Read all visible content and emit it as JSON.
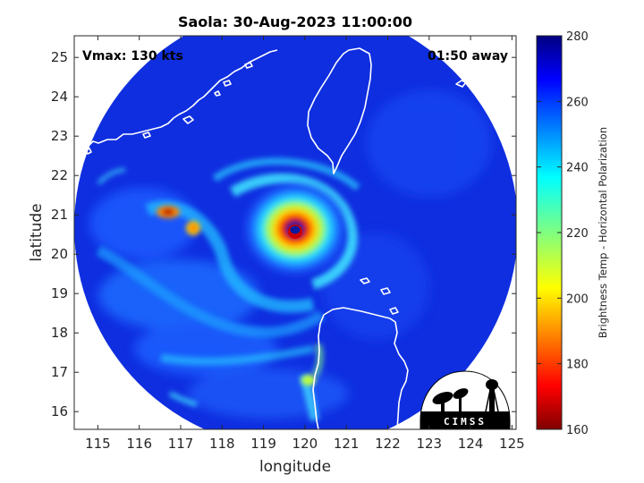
{
  "title": "Saola: 30-Aug-2023 11:00:00",
  "vmax_text": "Vmax: 130 kts",
  "time_away_text": "01:50 away",
  "xlabel": "longitude",
  "ylabel": "latitude",
  "x_ticks": [
    "115",
    "116",
    "117",
    "118",
    "119",
    "120",
    "121",
    "122",
    "123",
    "124",
    "125"
  ],
  "y_ticks": [
    "16",
    "17",
    "18",
    "19",
    "20",
    "21",
    "22",
    "23",
    "24",
    "25"
  ],
  "colorbar": {
    "label": "Brightness Temp - Horizontal Polarization",
    "min": 160,
    "max": 280,
    "ticks": [
      "160",
      "180",
      "200",
      "220",
      "240",
      "260",
      "280"
    ],
    "colormap": "jet"
  },
  "logo": {
    "text": "CIMSS"
  },
  "storm_center": {
    "lon": 119.6,
    "lat": 20.5
  }
}
